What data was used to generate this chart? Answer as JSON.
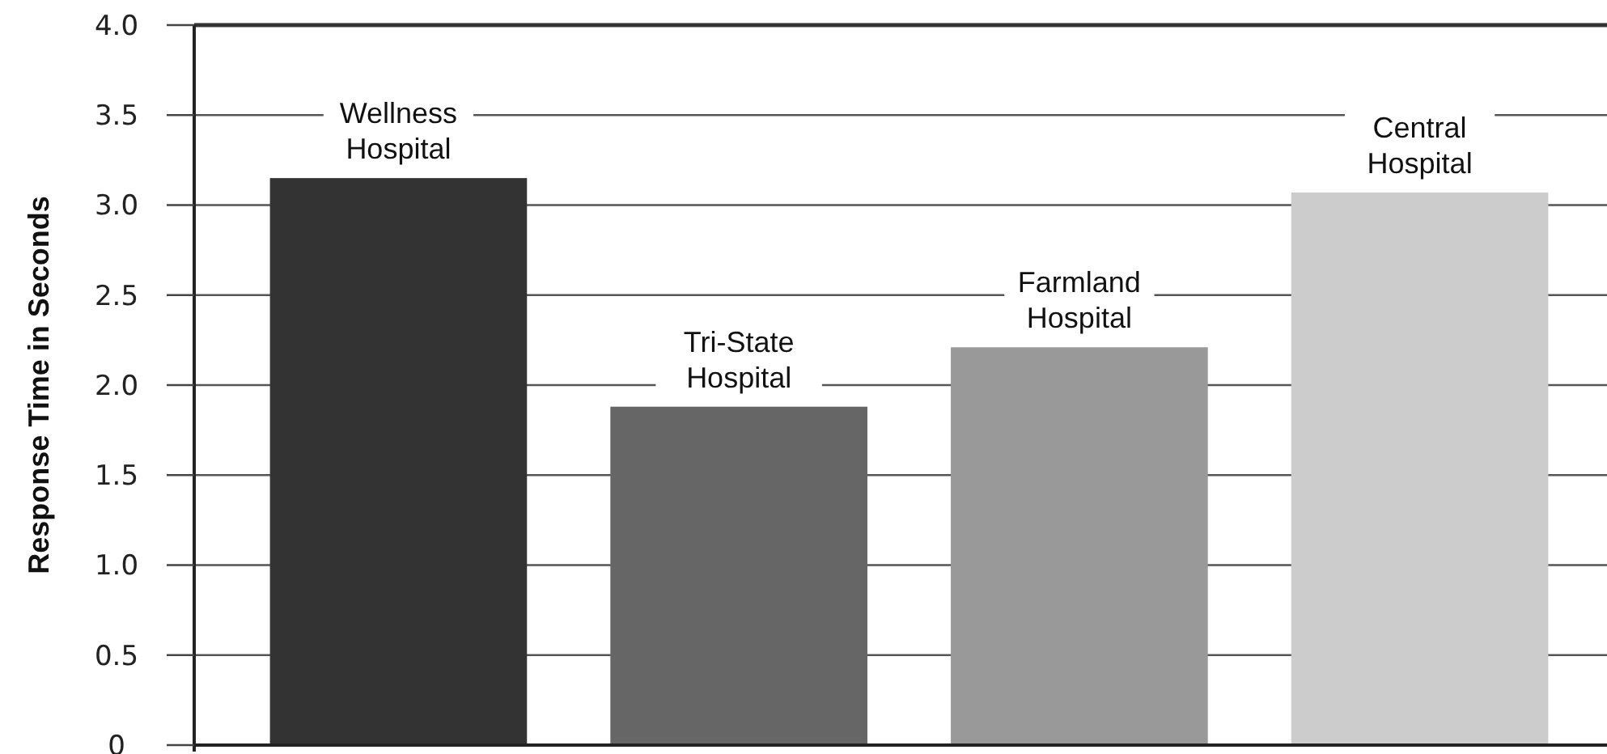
{
  "chart_data": {
    "type": "bar",
    "ylabel": "Response Time in Seconds",
    "categories": [
      "Wellness Hospital",
      "Tri-State Hospital",
      "Farmland Hospital",
      "Central Hospital"
    ],
    "values": [
      3.15,
      1.88,
      2.21,
      3.07
    ],
    "colors": [
      "#333333",
      "#666666",
      "#999999",
      "#cccccc"
    ],
    "ylim": [
      0,
      4
    ],
    "yticks": [
      {
        "value": 0,
        "label": "0"
      },
      {
        "value": 0.5,
        "label": "0.5"
      },
      {
        "value": 1,
        "label": "1.0"
      },
      {
        "value": 1.5,
        "label": "1.5"
      },
      {
        "value": 2,
        "label": "2.0"
      },
      {
        "value": 2.5,
        "label": "2.5"
      },
      {
        "value": 3,
        "label": "3.0"
      },
      {
        "value": 3.5,
        "label": "3.5"
      },
      {
        "value": 4,
        "label": "4.0"
      }
    ],
    "grid": "y"
  }
}
